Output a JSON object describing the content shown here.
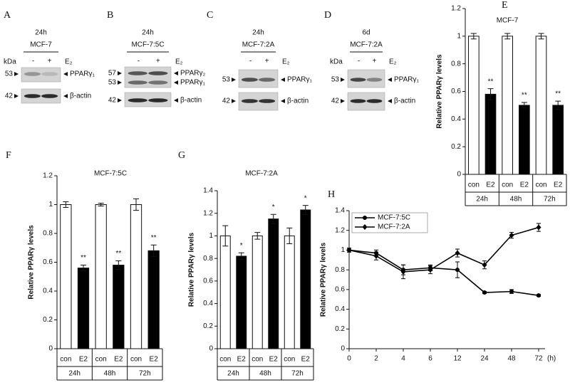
{
  "blots": [
    {
      "letter": "A",
      "time": "24h",
      "cell": "MCF-7",
      "unit": "kDa",
      "lanes": [
        "-",
        "+"
      ],
      "treatment": "E₂",
      "bands": [
        {
          "size": "53",
          "protein": "PPARγ₁"
        },
        {
          "size": "42",
          "protein": "β-actin"
        }
      ]
    },
    {
      "letter": "B",
      "time": "24h",
      "cell": "MCF-7:5C",
      "lanes": [
        "-",
        "+"
      ],
      "treatment": "E₂",
      "bands": [
        {
          "size": "57",
          "protein": "PPARγ₂"
        },
        {
          "size": "53",
          "protein": "PPARγ₁"
        },
        {
          "size": "42",
          "protein": "β-actin"
        }
      ]
    },
    {
      "letter": "C",
      "time": "24h",
      "cell": "MCF-7:2A",
      "lanes": [
        "-",
        "+"
      ],
      "treatment": "E₂",
      "bands": [
        {
          "size": "53",
          "protein": "PPARγ₁"
        },
        {
          "size": "42",
          "protein": "β-actin"
        }
      ]
    },
    {
      "letter": "D",
      "time": "6d",
      "cell": "MCF-7:2A",
      "unit": "kDa",
      "lanes": [
        "-",
        "+"
      ],
      "treatment": "E₂",
      "bands": [
        {
          "size": "53",
          "protein": "PPARγ₁"
        },
        {
          "size": "42",
          "protein": "β-actin"
        }
      ]
    }
  ],
  "chart_data": [
    {
      "type": "bar",
      "label": "E",
      "title": "MCF-7",
      "y_label": "Relative PPARγ levels",
      "categories": [
        "con",
        "E2",
        "con",
        "E2",
        "con",
        "E2"
      ],
      "groups": [
        "24h",
        "48h",
        "72h"
      ],
      "values": [
        1,
        0.58,
        1,
        0.5,
        1,
        0.5
      ],
      "errors": [
        0.02,
        0.04,
        0.02,
        0.02,
        0.02,
        0.03
      ],
      "annotations": [
        null,
        "**",
        null,
        "**",
        null,
        "**"
      ],
      "colors": [
        "#ffffff",
        "#000000",
        "#ffffff",
        "#000000",
        "#ffffff",
        "#000000"
      ],
      "ylim": [
        0,
        1.2
      ],
      "yticks": [
        0,
        0.2,
        0.4,
        0.6,
        0.8,
        1,
        1.2
      ]
    },
    {
      "type": "bar",
      "label": "F",
      "title": "MCF-7:5C",
      "y_label": "Relative PPARγ levels",
      "categories": [
        "con",
        "E2",
        "con",
        "E2",
        "con",
        "E2"
      ],
      "groups": [
        "24h",
        "48h",
        "72h"
      ],
      "values": [
        1,
        0.56,
        1,
        0.58,
        1,
        0.68
      ],
      "errors": [
        0.02,
        0.02,
        0.01,
        0.03,
        0.04,
        0.04
      ],
      "annotations": [
        null,
        "**",
        null,
        "**",
        null,
        "**"
      ],
      "colors": [
        "#ffffff",
        "#000000",
        "#ffffff",
        "#000000",
        "#ffffff",
        "#000000"
      ],
      "ylim": [
        0,
        1.2
      ],
      "yticks": [
        0,
        0.2,
        0.4,
        0.6,
        0.8,
        1,
        1.2
      ]
    },
    {
      "type": "bar",
      "label": "G",
      "title": "MCF-7:2A",
      "y_label": "Relative PPARγ levels",
      "categories": [
        "con",
        "E2",
        "con",
        "E2",
        "con",
        "E2"
      ],
      "groups": [
        "24h",
        "48h",
        "72h"
      ],
      "values": [
        1,
        0.82,
        1,
        1.15,
        1,
        1.23
      ],
      "errors": [
        0.09,
        0.03,
        0.03,
        0.04,
        0.07,
        0.04
      ],
      "annotations": [
        null,
        "*",
        null,
        "*",
        null,
        "*"
      ],
      "colors": [
        "#ffffff",
        "#000000",
        "#ffffff",
        "#000000",
        "#ffffff",
        "#000000"
      ],
      "ylim": [
        0,
        1.4
      ],
      "yticks": [
        0,
        0.2,
        0.4,
        0.6,
        0.8,
        1,
        1.2,
        1.4
      ]
    },
    {
      "type": "line",
      "label": "H",
      "y_label": "Relative PPARγ levels",
      "x_unit": "(h)",
      "categories": [
        "0",
        "2",
        "4",
        "6",
        "12",
        "24",
        "48",
        "72"
      ],
      "series": [
        {
          "name": "MCF-7:5C",
          "color": "#000000",
          "marker": "circle",
          "values": [
            1,
            0.97,
            0.8,
            0.82,
            0.8,
            0.57,
            0.58,
            0.54
          ],
          "errors": [
            0.02,
            0.03,
            0.05,
            0.03,
            0.08,
            0.01,
            0.02,
            0.01
          ]
        },
        {
          "name": "MCF-7:2A",
          "color": "#000000",
          "marker": "diamond",
          "values": [
            1,
            0.94,
            0.78,
            0.8,
            0.97,
            0.85,
            1.15,
            1.23
          ],
          "errors": [
            0.02,
            0.04,
            0.07,
            0.04,
            0.04,
            0.04,
            0.03,
            0.04
          ]
        }
      ],
      "ylim": [
        0,
        1.4
      ],
      "yticks": [
        0,
        0.2,
        0.4,
        0.6,
        0.8,
        1,
        1.2,
        1.4
      ],
      "legend": "top-left"
    }
  ]
}
